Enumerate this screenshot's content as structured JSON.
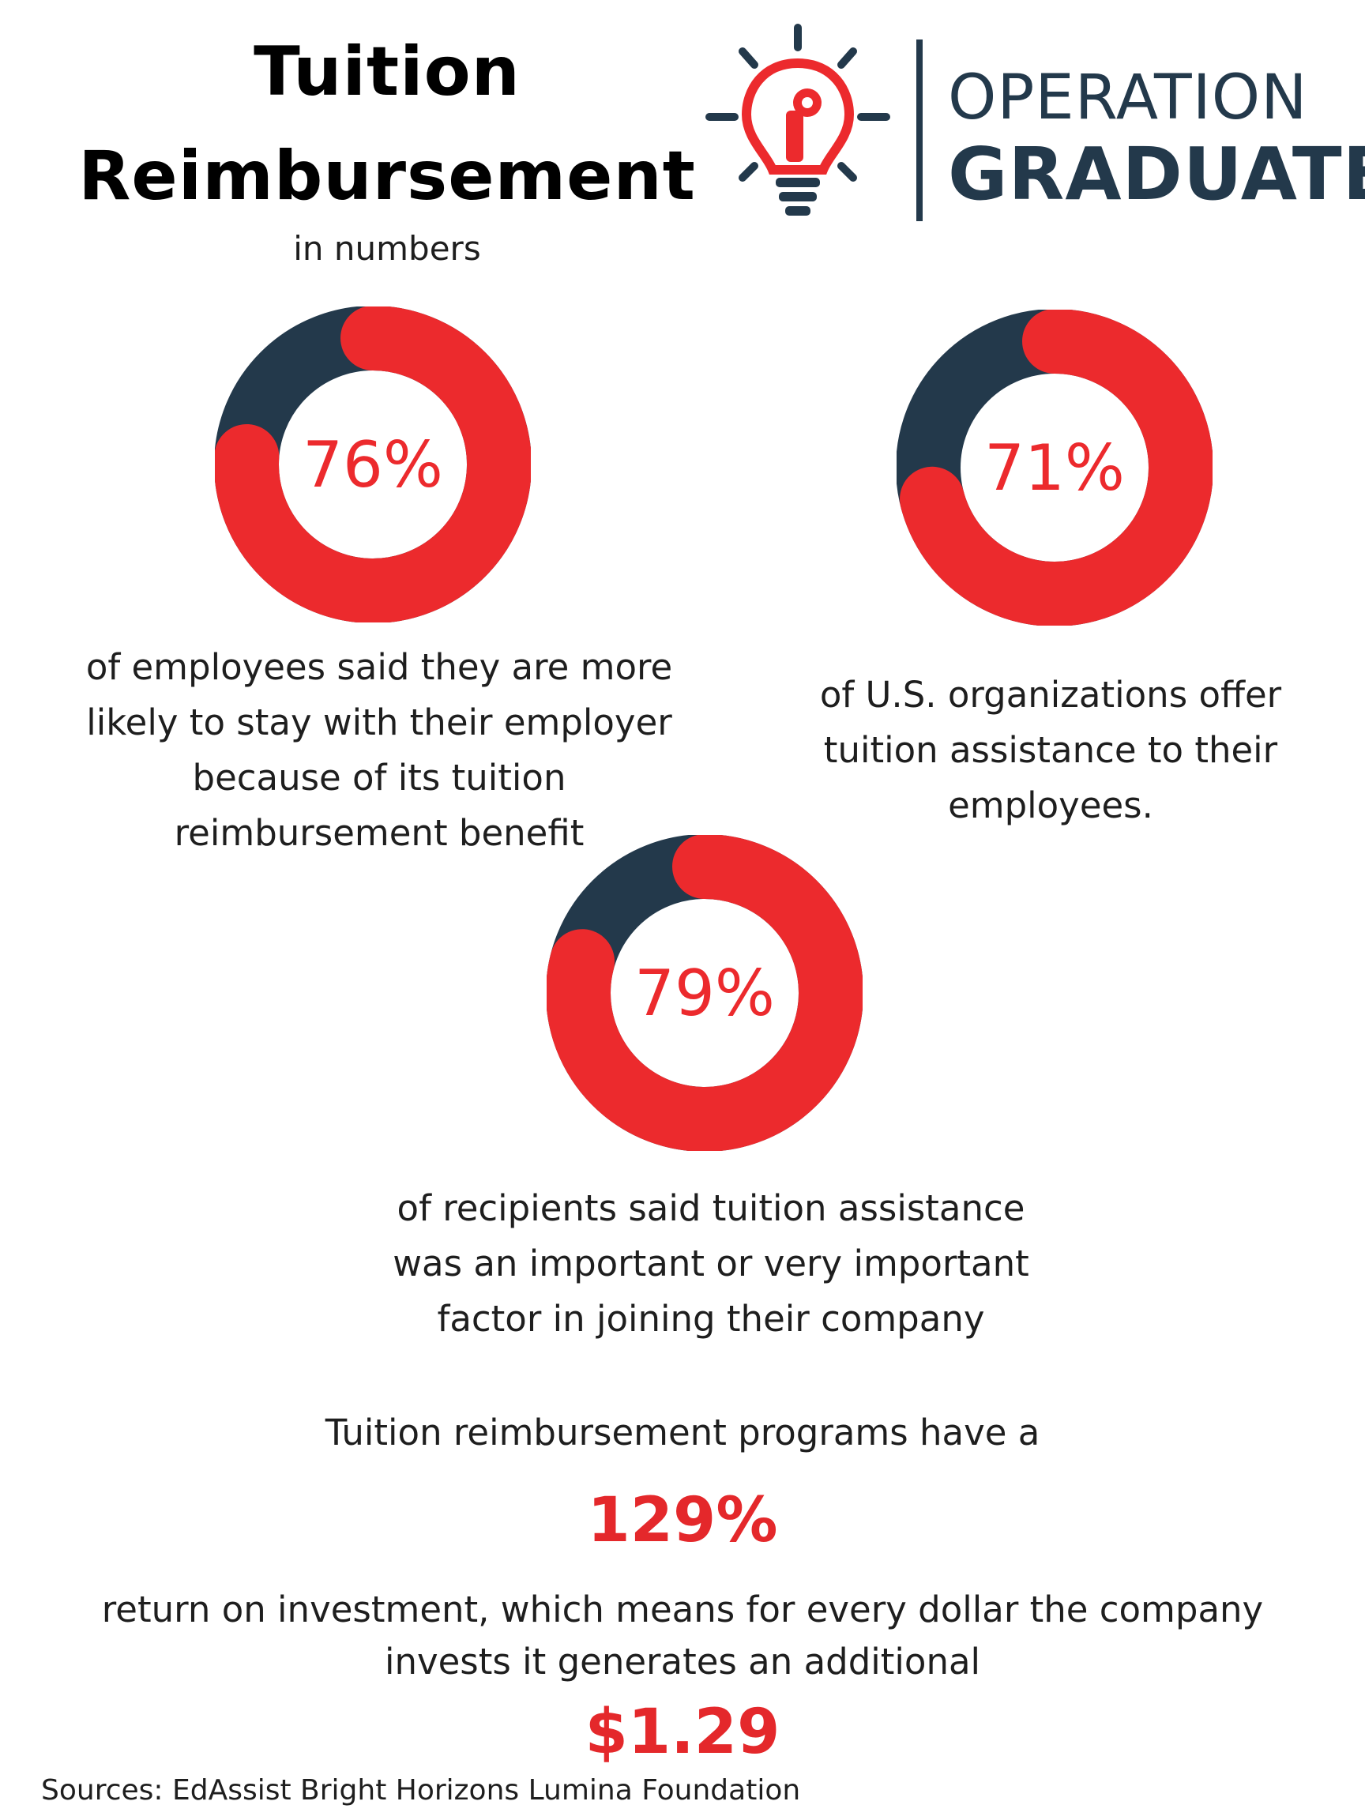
{
  "header": {
    "title_line1": "Tuition",
    "title_line2": "Reimbursement",
    "subtitle": "in numbers"
  },
  "logo": {
    "word1": "OPERATION",
    "word2": "GRADUATE"
  },
  "colors": {
    "accent_red": "#ec2a2d",
    "navy": "#23394b"
  },
  "chart_data": [
    {
      "type": "pie",
      "label": "76%",
      "values": [
        76,
        24
      ],
      "caption": [
        "of employees said they are more",
        "likely to stay with their employer",
        "because of its tuition",
        "reimbursement benefit"
      ]
    },
    {
      "type": "pie",
      "label": "71%",
      "values": [
        71,
        29
      ],
      "caption": [
        "of U.S. organizations offer",
        "tuition assistance to their",
        "employees."
      ]
    },
    {
      "type": "pie",
      "label": "79%",
      "values": [
        79,
        21
      ],
      "caption": [
        "of recipients said tuition assistance",
        "was an important or very important",
        "factor in joining their company"
      ]
    }
  ],
  "roi": {
    "intro": "Tuition reimbursement programs have a",
    "percent": "129%",
    "line1": "return on investment, which means for every dollar the company",
    "line2": "invests it generates an additional",
    "amount": "$1.29"
  },
  "sources": "Sources: EdAssist Bright Horizons Lumina Foundation"
}
